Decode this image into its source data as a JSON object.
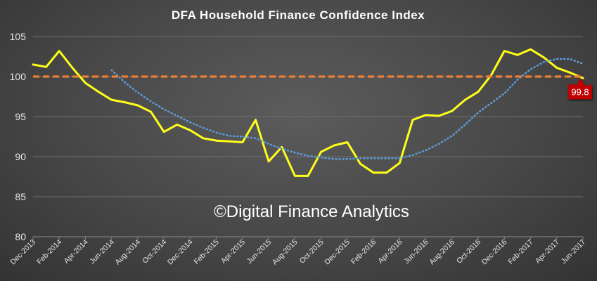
{
  "chart_data": {
    "type": "line",
    "title": "DFA Household Finance Confidence Index",
    "watermark": "©Digital Finance Analytics",
    "xlabel": "",
    "ylabel": "",
    "ylim": [
      80,
      105
    ],
    "yticks": [
      "80",
      "85",
      "90",
      "95",
      "100",
      "105"
    ],
    "grid": "horizontal",
    "x": [
      "Dec-2013",
      "Jan-2014",
      "Feb-2014",
      "Mar-2014",
      "Apr-2014",
      "May-2014",
      "Jun-2014",
      "Jul-2014",
      "Aug-2014",
      "Sep-2014",
      "Oct-2014",
      "Nov-2014",
      "Dec-2014",
      "Jan-2015",
      "Feb-2015",
      "Mar-2015",
      "Apr-2015",
      "May-2015",
      "Jun-2015",
      "Jul-2015",
      "Aug-2015",
      "Sep-2015",
      "Oct-2015",
      "Nov-2015",
      "Dec-2015",
      "Jan-2016",
      "Feb-2016",
      "Mar-2016",
      "Apr-2016",
      "May-2016",
      "Jun-2016",
      "Jul-2016",
      "Aug-2016",
      "Sep-2016",
      "Oct-2016",
      "Nov-2016",
      "Dec-2016",
      "Jan-2017",
      "Feb-2017",
      "Mar-2017",
      "Apr-2017",
      "May-2017",
      "Jun-2017"
    ],
    "x_tick_labels": [
      "Dec-2013",
      "Feb-2014",
      "Apr-2014",
      "Jun-2014",
      "Aug-2014",
      "Oct-2014",
      "Dec-2014",
      "Feb-2015",
      "Apr-2015",
      "Jun-2015",
      "Aug-2015",
      "Oct-2015",
      "Dec-2015",
      "Feb-2016",
      "Apr-2016",
      "Jun-2016",
      "Aug-2016",
      "Oct-2016",
      "Dec-2016",
      "Feb-2017",
      "Apr-2017",
      "Jun-2017"
    ],
    "series": [
      {
        "role": "index",
        "color": "#ffff1a",
        "style": "solid",
        "values": [
          101.5,
          101.2,
          103.2,
          101.1,
          99.2,
          98.1,
          97.1,
          96.8,
          96.4,
          95.6,
          93.1,
          94.0,
          93.3,
          92.3,
          92.0,
          91.9,
          91.8,
          94.6,
          89.4,
          91.2,
          87.6,
          87.6,
          90.6,
          91.4,
          91.8,
          89.1,
          88.0,
          88.0,
          89.2,
          94.6,
          95.2,
          95.1,
          95.7,
          97.1,
          98.1,
          100.2,
          103.2,
          102.7,
          103.4,
          102.4,
          101.1,
          100.5,
          99.8
        ]
      },
      {
        "role": "trend",
        "color": "#5b9bd5",
        "style": "dotted",
        "values": [
          null,
          null,
          null,
          null,
          null,
          null,
          100.8,
          99.3,
          98.0,
          96.9,
          95.9,
          95.1,
          94.3,
          93.6,
          93.0,
          92.6,
          92.5,
          92.3,
          91.6,
          91.0,
          90.5,
          90.1,
          89.9,
          89.7,
          89.7,
          89.8,
          89.8,
          89.8,
          89.8,
          90.2,
          90.8,
          91.6,
          92.6,
          94.0,
          95.5,
          96.7,
          97.9,
          99.6,
          100.9,
          101.8,
          102.2,
          102.2,
          101.6
        ]
      },
      {
        "role": "baseline",
        "color": "#ed7d31",
        "style": "dashed",
        "value": 100
      }
    ],
    "annotations": [
      {
        "text": "99.8",
        "x": "Jun-2017",
        "y": 99.8,
        "color": "#c00000"
      }
    ]
  }
}
